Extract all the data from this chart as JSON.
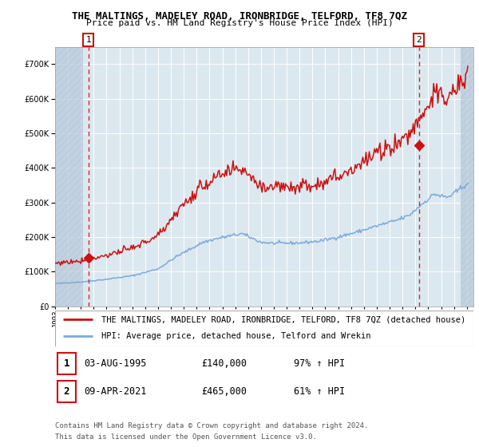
{
  "title": "THE MALTINGS, MADELEY ROAD, IRONBRIDGE, TELFORD, TF8 7QZ",
  "subtitle": "Price paid vs. HM Land Registry's House Price Index (HPI)",
  "legend_line1": "THE MALTINGS, MADELEY ROAD, IRONBRIDGE, TELFORD, TF8 7QZ (detached house)",
  "legend_line2": "HPI: Average price, detached house, Telford and Wrekin",
  "annotation1_date": "03-AUG-1995",
  "annotation1_price": "£140,000",
  "annotation1_hpi": "97% ↑ HPI",
  "annotation2_date": "09-APR-2021",
  "annotation2_price": "£465,000",
  "annotation2_hpi": "61% ↑ HPI",
  "footnote1": "Contains HM Land Registry data © Crown copyright and database right 2024.",
  "footnote2": "This data is licensed under the Open Government Licence v3.0.",
  "sale1_year": 1995.58,
  "sale1_value": 140000,
  "sale2_year": 2021.27,
  "sale2_value": 465000,
  "xmin": 1993.0,
  "xmax": 2025.5,
  "hatch_left_end": 1995.2,
  "hatch_right_start": 2024.5,
  "ylim_min": 0,
  "ylim_max": 750000,
  "ytick_step": 100000,
  "hpi_color": "#7aabdb",
  "property_color": "#cc1111",
  "bg_color": "#dce8f0",
  "hatch_color": "#b8c8d8",
  "grid_color": "#ffffff",
  "vline_color": "#dd2222",
  "marker_color": "#cc1111",
  "annot_box_color": "#cc1111",
  "legend_border_color": "#aaaaaa",
  "title_fontsize": 9.0,
  "subtitle_fontsize": 8.0,
  "tick_fontsize": 7.0,
  "legend_fontsize": 7.5,
  "annot_fontsize": 8.0,
  "footnote_fontsize": 6.5
}
